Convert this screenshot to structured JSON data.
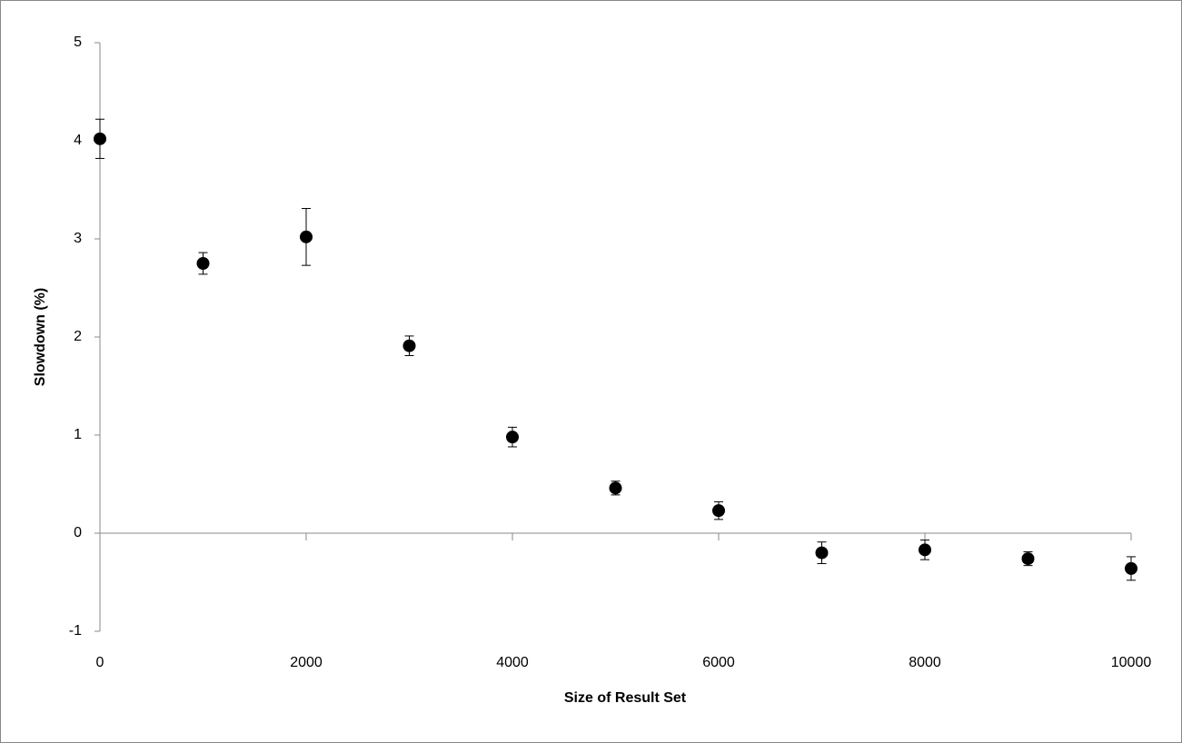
{
  "chart_data": {
    "type": "scatter",
    "x_label": "Size of Result Set",
    "y_label": "Slowdown (%)",
    "x": [
      0,
      1000,
      2000,
      3000,
      4000,
      5000,
      6000,
      7000,
      8000,
      9000,
      10000
    ],
    "values": [
      4.02,
      2.75,
      3.02,
      1.91,
      0.98,
      0.46,
      0.23,
      -0.2,
      -0.17,
      -0.26,
      -0.36
    ],
    "errors": [
      0.2,
      0.11,
      0.29,
      0.1,
      0.1,
      0.07,
      0.09,
      0.11,
      0.1,
      0.07,
      0.12
    ],
    "color": "#000000",
    "xlim": [
      0,
      10000
    ],
    "xticks": [
      0,
      2000,
      4000,
      6000,
      8000,
      10000
    ],
    "ylim": [
      -1,
      5
    ],
    "yticks": [
      -1,
      0,
      1,
      2,
      3,
      4,
      5
    ]
  }
}
